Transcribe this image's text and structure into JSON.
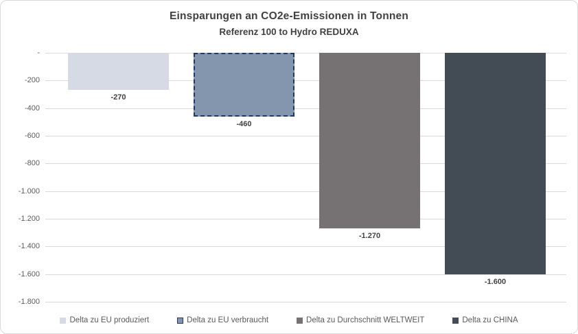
{
  "title": "Einsparungen an CO2e-Emissionen in Tonnen",
  "subtitle": "Referenz 100 to Hydro REDUXA",
  "chart_data": {
    "type": "bar",
    "title": "Einsparungen an CO2e-Emissionen in Tonnen",
    "subtitle": "Referenz 100 to Hydro REDUXA",
    "categories": [
      "Delta zu EU produziert",
      "Delta zu EU verbraucht",
      "Delta zu Durchschnitt WELTWEIT",
      "Delta zu CHINA"
    ],
    "values": [
      -270,
      -460,
      -1270,
      -1600
    ],
    "data_labels": [
      "-270",
      "-460",
      "-1.270",
      "-1.600"
    ],
    "ylim": [
      -1800,
      0
    ],
    "y_ticks": [
      0,
      -200,
      -400,
      -600,
      -800,
      -1000,
      -1200,
      -1400,
      -1600,
      -1800
    ],
    "y_tick_labels": [
      "-",
      "-200",
      "-400",
      "-600",
      "-800",
      "-1.000",
      "-1.200",
      "-1.400",
      "-1.600",
      "-1.800"
    ],
    "grid": true,
    "legend_position": "bottom",
    "bar_colors": [
      "#d6dae4",
      "#8496ae",
      "#767172",
      "#434b55"
    ],
    "bar_borders": [
      null,
      {
        "color": "#1f3864",
        "style": "dashed",
        "width": 2
      },
      null,
      null
    ]
  },
  "colors": {
    "title_text": "#404040",
    "axis_text": "#595959",
    "gridline": "#d9d9d9",
    "frame_border": "#d9d9d9",
    "data_label_text": "#404040"
  }
}
